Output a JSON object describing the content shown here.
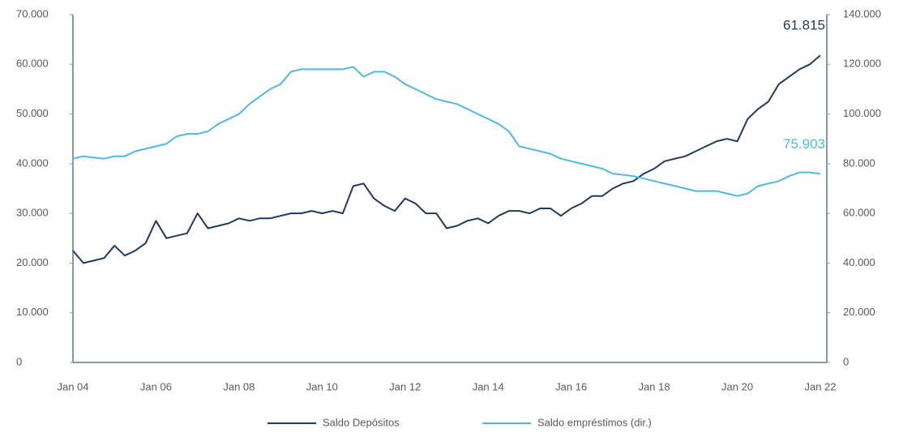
{
  "chart_data": {
    "type": "line",
    "categories": [
      "Jan 04",
      null,
      null,
      null,
      null,
      null,
      null,
      null,
      "Jan 06",
      null,
      null,
      null,
      null,
      null,
      null,
      null,
      "Jan 08",
      null,
      null,
      null,
      null,
      null,
      null,
      null,
      "Jan 10",
      null,
      null,
      null,
      null,
      null,
      null,
      null,
      "Jan 12",
      null,
      null,
      null,
      null,
      null,
      null,
      null,
      "Jan 14",
      null,
      null,
      null,
      null,
      null,
      null,
      null,
      "Jan 16",
      null,
      null,
      null,
      null,
      null,
      null,
      null,
      "Jan 18",
      null,
      null,
      null,
      null,
      null,
      null,
      null,
      "Jan 20",
      null,
      null,
      null,
      null,
      null,
      null,
      null,
      "Jan 22"
    ],
    "series": [
      {
        "name": "Saldo Depósitos",
        "color": "#1f3b5c",
        "values": [
          22500,
          20000,
          20500,
          21000,
          23500,
          21500,
          22500,
          24000,
          28500,
          25000,
          25500,
          26000,
          30000,
          27000,
          27500,
          28000,
          29000,
          28500,
          29000,
          29000,
          29500,
          30000,
          30000,
          30500,
          30000,
          30500,
          30000,
          35500,
          36000,
          33000,
          31500,
          30500,
          33000,
          32000,
          30000,
          30000,
          27000,
          27500,
          28500,
          29000,
          28000,
          29500,
          30500,
          30500,
          30000,
          31000,
          31000,
          29500,
          31000,
          32000,
          33500,
          33500,
          35000,
          36000,
          36500,
          38000,
          39000,
          40500,
          41000,
          41500,
          42500,
          43500,
          44500,
          45000,
          44500,
          49000,
          51000,
          52500,
          56000,
          57500,
          59000,
          60000,
          61815
        ],
        "value_labels": [
          null,
          null,
          null,
          null,
          null,
          null,
          null,
          null,
          null,
          null,
          null,
          null,
          null,
          null,
          null,
          null,
          null,
          null,
          null,
          null,
          null,
          null,
          null,
          null,
          null,
          null,
          null,
          null,
          null,
          null,
          null,
          null,
          null,
          null,
          null,
          null,
          null,
          null,
          null,
          null,
          null,
          null,
          null,
          null,
          null,
          null,
          null,
          null,
          null,
          null,
          null,
          null,
          null,
          null,
          null,
          null,
          null,
          null,
          null,
          null,
          null,
          null,
          null,
          null,
          null,
          null,
          null,
          null,
          null,
          null,
          null,
          null,
          "61.815"
        ]
      },
      {
        "name": "Saldo empréstimos (dir.)",
        "color": "#4fb9e3",
        "axis": "y2",
        "values": [
          82000,
          83000,
          82500,
          82000,
          83000,
          83000,
          85000,
          86000,
          87000,
          88000,
          91000,
          92000,
          92000,
          93000,
          96000,
          98000,
          100000,
          104000,
          107000,
          110000,
          112000,
          117000,
          118000,
          118000,
          118000,
          118000,
          118000,
          119000,
          115000,
          117000,
          117000,
          115000,
          112000,
          110000,
          108000,
          106000,
          105000,
          104000,
          102000,
          100000,
          98000,
          96000,
          93000,
          87000,
          86000,
          85000,
          84000,
          82000,
          81000,
          80000,
          79000,
          78000,
          76000,
          75500,
          75000,
          74000,
          73000,
          72000,
          71000,
          70000,
          69000,
          69000,
          69000,
          68000,
          67000,
          68000,
          71000,
          72000,
          73000,
          75000,
          76500,
          76500,
          75903
        ],
        "value_labels": [
          null,
          null,
          null,
          null,
          null,
          null,
          null,
          null,
          null,
          null,
          null,
          null,
          null,
          null,
          null,
          null,
          null,
          null,
          null,
          null,
          null,
          null,
          null,
          null,
          null,
          null,
          null,
          null,
          null,
          null,
          null,
          null,
          null,
          null,
          null,
          null,
          null,
          null,
          null,
          null,
          null,
          null,
          null,
          null,
          null,
          null,
          null,
          null,
          null,
          null,
          null,
          null,
          null,
          null,
          null,
          null,
          null,
          null,
          null,
          null,
          null,
          null,
          null,
          null,
          null,
          null,
          null,
          null,
          null,
          null,
          null,
          null,
          "75.903"
        ]
      }
    ],
    "ylim": [
      0,
      70000
    ],
    "yticks": [
      0,
      {
        "value": 10000,
        "label": "10.000"
      },
      {
        "value": 20000,
        "label": "20.000"
      },
      {
        "value": 30000,
        "label": "30.000"
      },
      {
        "value": 40000,
        "label": "40.000"
      },
      {
        "value": 50000,
        "label": "50.000"
      },
      {
        "value": 60000,
        "label": "60.000"
      },
      {
        "value": 70000,
        "label": "70.000"
      }
    ],
    "y2lim": [
      0,
      140000
    ],
    "y2ticks": [
      0,
      {
        "value": 20000,
        "label": "20.000"
      },
      {
        "value": 40000,
        "label": "40.000"
      },
      {
        "value": 60000,
        "label": "60.000"
      },
      {
        "value": 80000,
        "label": "80.000"
      },
      {
        "value": 100000,
        "label": "100.000"
      },
      {
        "value": 120000,
        "label": "120.000"
      },
      {
        "value": 140000,
        "label": "140.000"
      }
    ],
    "legend": "bottom"
  }
}
